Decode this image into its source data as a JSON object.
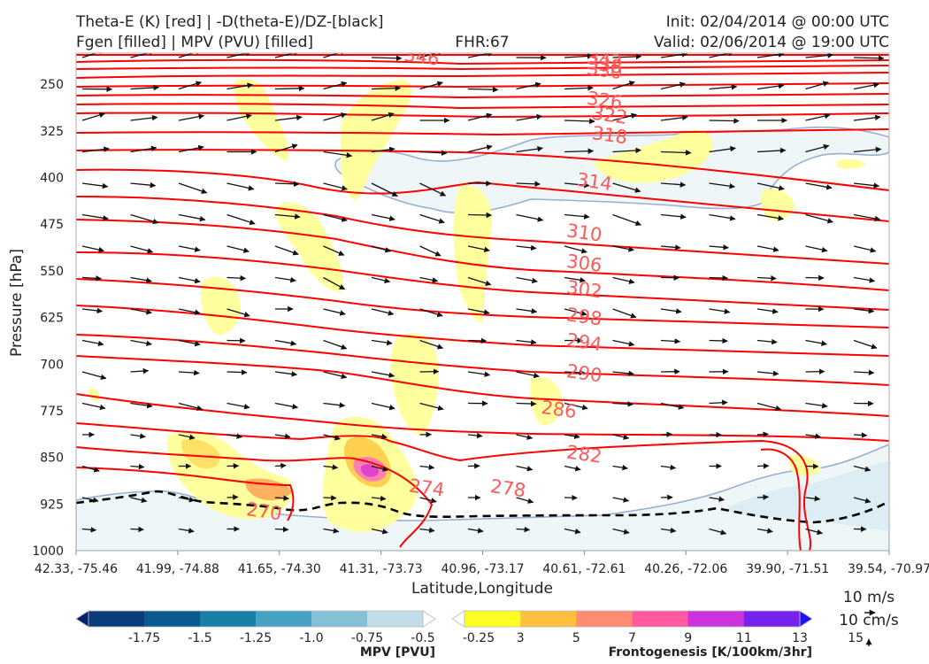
{
  "header": {
    "line1_left": "Theta-E (K) [red] | -D(theta-E)/DZ-[black]",
    "line2_left": "Fgen [filled] | MPV (PVU) [filled]",
    "center": "FHR:67",
    "line1_right": "Init: 02/04/2014 @ 00:00 UTC",
    "line2_right": "Valid: 02/06/2014 @ 19:00 UTC"
  },
  "colors": {
    "theta_e": "#ff0000",
    "theta_e_label": "#ff5a5a",
    "mpv_fill": "#eef6f8",
    "mpv_edge": "#9aaed0",
    "fgen_light": "#ffff99",
    "fgen_peak": "#ff44cc"
  },
  "chart_data": {
    "type": "cross-section",
    "xlabel": "Latitude,Longitude",
    "ylabel": "Pressure [hPa]",
    "x_ticks": [
      "42.33, -75.46",
      "41.99, -74.88",
      "41.65, -74.30",
      "41.31, -73.73",
      "40.96, -73.17",
      "40.61, -72.61",
      "40.26, -72.06",
      "39.90, -71.51",
      "39.54, -70.97"
    ],
    "y_ticks": [
      250,
      325,
      400,
      475,
      550,
      625,
      700,
      775,
      850,
      925,
      1000
    ],
    "ylim": [
      1000,
      200
    ],
    "y_inverted": true,
    "theta_e_labels": [
      {
        "value": "346",
        "x": 3.4,
        "p": 206
      },
      {
        "value": "342",
        "x": 5.2,
        "p": 211
      },
      {
        "value": "338",
        "x": 5.2,
        "p": 219
      },
      {
        "value": "330",
        "x": 5.2,
        "p": 228
      },
      {
        "value": "326",
        "x": 5.2,
        "p": 276
      },
      {
        "value": "322",
        "x": 5.25,
        "p": 300
      },
      {
        "value": "318",
        "x": 5.25,
        "p": 332
      },
      {
        "value": "314",
        "x": 5.1,
        "p": 407
      },
      {
        "value": "310",
        "x": 5.0,
        "p": 489
      },
      {
        "value": "306",
        "x": 5.0,
        "p": 538
      },
      {
        "value": "302",
        "x": 5.0,
        "p": 580
      },
      {
        "value": "298",
        "x": 5.0,
        "p": 624
      },
      {
        "value": "294",
        "x": 5.0,
        "p": 665
      },
      {
        "value": "290",
        "x": 5.0,
        "p": 715
      },
      {
        "value": "286",
        "x": 4.75,
        "p": 773
      },
      {
        "value": "282",
        "x": 5.0,
        "p": 845
      },
      {
        "value": "278",
        "x": 4.25,
        "p": 900
      },
      {
        "value": "274",
        "x": 3.45,
        "p": 899
      },
      {
        "value": "270",
        "x": 1.85,
        "p": 937
      }
    ],
    "mpv_colorbar": {
      "label": "MPV [PVU]",
      "ticks": [
        "-1.75",
        "-1.5",
        "-1.25",
        "-1.0",
        "-0.75",
        "-0.5",
        "-0.25"
      ],
      "colors": [
        "#08206a",
        "#0c3c7a",
        "#0b5a8e",
        "#1a7fa8",
        "#45a2c4",
        "#86c0d6",
        "#c0dde8",
        "#ffffff"
      ]
    },
    "fgen_colorbar": {
      "label": "Frontogenesis [K/100km/3hr]",
      "ticks": [
        "3",
        "5",
        "7",
        "9",
        "11",
        "13",
        "15"
      ],
      "colors": [
        "#ffffff",
        "#ffff22",
        "#ffc040",
        "#ff8c70",
        "#ff5aa0",
        "#cc33dd",
        "#7722ee",
        "#2211ff"
      ]
    },
    "vector_key": {
      "horizontal": "10 m/s",
      "vertical": "10 cm/s"
    }
  }
}
